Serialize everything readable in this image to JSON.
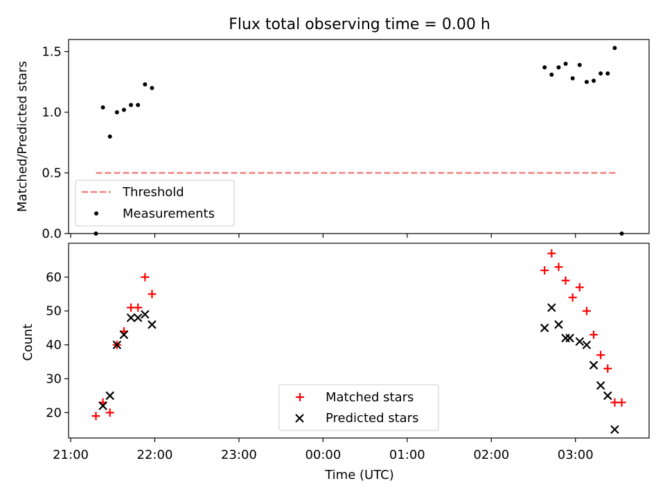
{
  "chart_data": [
    {
      "type": "scatter",
      "title": "Flux total observing time = 0.00 h",
      "xlabel": "",
      "ylabel": "Matched/Predicted stars",
      "xlim": [
        "21:00",
        "03:53"
      ],
      "ylim": [
        0,
        1.6
      ],
      "yticks": [
        "0.0",
        "0.5",
        "1.0",
        "1.5"
      ],
      "legend": {
        "placement": "lower-left",
        "entries": [
          "Threshold",
          "Measurements"
        ]
      },
      "series": [
        {
          "name": "Threshold",
          "style": "dashed-line",
          "color": "#f08080",
          "x": [
            "21:18",
            "03:30"
          ],
          "y": [
            0.5,
            0.5
          ]
        },
        {
          "name": "Measurements",
          "style": "dot",
          "color": "#000000",
          "x": [
            "21:18",
            "21:23",
            "21:28",
            "21:33",
            "21:38",
            "21:43",
            "21:48",
            "21:53",
            "21:58",
            "02:38",
            "02:43",
            "02:48",
            "02:53",
            "02:58",
            "03:03",
            "03:08",
            "03:13",
            "03:18",
            "03:23",
            "03:28",
            "03:33"
          ],
          "y": [
            0.0,
            1.04,
            0.8,
            1.0,
            1.02,
            1.06,
            1.06,
            1.23,
            1.2,
            1.37,
            1.31,
            1.37,
            1.4,
            1.28,
            1.39,
            1.25,
            1.26,
            1.32,
            1.32,
            1.53,
            0.0
          ]
        }
      ]
    },
    {
      "type": "scatter",
      "xlabel": "Time (UTC)",
      "ylabel": "Count",
      "xticks": [
        "21:00",
        "22:00",
        "23:00",
        "00:00",
        "01:00",
        "02:00",
        "03:00"
      ],
      "yticks": [
        "20",
        "30",
        "40",
        "50",
        "60"
      ],
      "ylim": [
        12.5,
        70
      ],
      "legend": {
        "placement": "lower-center",
        "entries": [
          "Matched stars",
          "Predicted stars"
        ]
      },
      "series": [
        {
          "name": "Matched stars",
          "marker": "plus",
          "color": "#ff0000",
          "x": [
            "21:18",
            "21:23",
            "21:28",
            "21:33",
            "21:38",
            "21:43",
            "21:48",
            "21:53",
            "21:58",
            "02:38",
            "02:43",
            "02:48",
            "02:53",
            "02:58",
            "03:03",
            "03:08",
            "03:13",
            "03:18",
            "03:23",
            "03:28",
            "03:33"
          ],
          "y": [
            19,
            23,
            20,
            40,
            44,
            51,
            51,
            60,
            55,
            62,
            67,
            63,
            59,
            54,
            57,
            50,
            43,
            37,
            33,
            23,
            23
          ]
        },
        {
          "name": "Predicted stars",
          "marker": "x",
          "color": "#000000",
          "x": [
            "21:23",
            "21:28",
            "21:33",
            "21:38",
            "21:43",
            "21:48",
            "21:53",
            "21:58",
            "02:38",
            "02:43",
            "02:48",
            "02:53",
            "02:56",
            "03:03",
            "03:08",
            "03:13",
            "03:18",
            "03:23",
            "03:28"
          ],
          "y": [
            22,
            25,
            40,
            43,
            48,
            48,
            49,
            46,
            45,
            51,
            46,
            42,
            42,
            41,
            40,
            34,
            28,
            25,
            15
          ]
        }
      ]
    }
  ]
}
